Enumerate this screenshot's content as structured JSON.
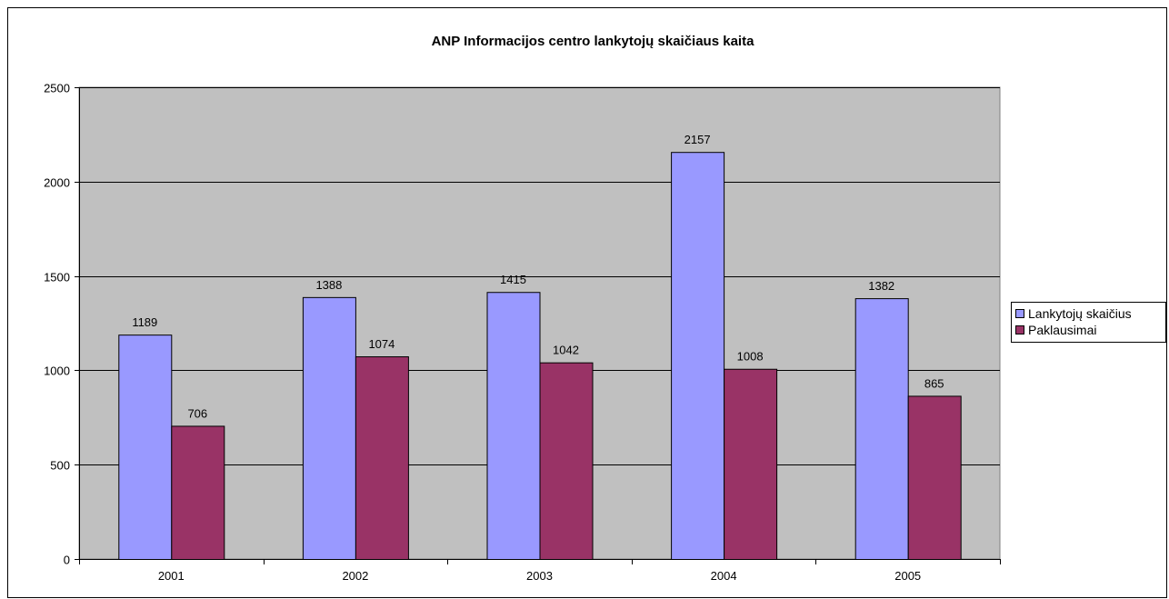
{
  "chart_data": {
    "type": "bar",
    "title": "ANP Informacijos centro lankytojų skaičiaus kaita",
    "xlabel": "",
    "ylabel": "",
    "categories": [
      "2001",
      "2002",
      "2003",
      "2004",
      "2005"
    ],
    "series": [
      {
        "name": "Lankytojų skaičius",
        "values": [
          1189,
          1388,
          1415,
          2157,
          1382
        ],
        "color": "#9999ff"
      },
      {
        "name": "Paklausimai",
        "values": [
          706,
          1074,
          1042,
          1008,
          865
        ],
        "color": "#993366"
      }
    ],
    "ylim": [
      0,
      2500
    ],
    "yticks": [
      0,
      500,
      1000,
      1500,
      2000,
      2500
    ],
    "grid": true,
    "plot_background": "#c0c0c0",
    "legend_position": "right"
  }
}
